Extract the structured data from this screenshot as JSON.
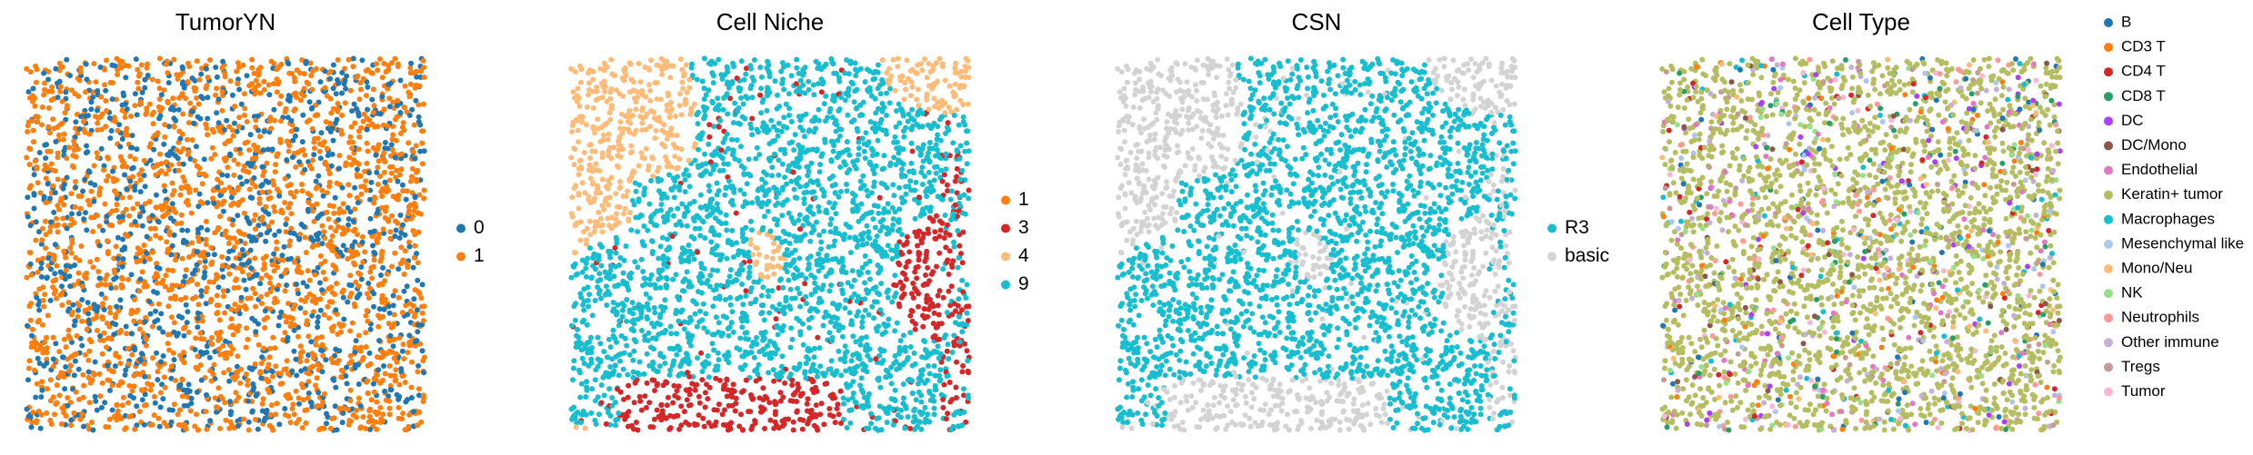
{
  "panels": [
    {
      "title": "TumorYN",
      "legend": [
        {
          "label": "0",
          "color": "#1f77b4"
        },
        {
          "label": "1",
          "color": "#ff7f0e"
        }
      ]
    },
    {
      "title": "Cell Niche",
      "legend": [
        {
          "label": "1",
          "color": "#ff7f0e"
        },
        {
          "label": "3",
          "color": "#d62728"
        },
        {
          "label": "4",
          "color": "#ffbb78"
        },
        {
          "label": "9",
          "color": "#17becf"
        }
      ]
    },
    {
      "title": "CSN",
      "legend": [
        {
          "label": "R3",
          "color": "#17becf"
        },
        {
          "label": "basic",
          "color": "#d3d3d3"
        }
      ]
    },
    {
      "title": "Cell Type",
      "legend": [
        {
          "label": "B",
          "color": "#1f77b4"
        },
        {
          "label": "CD3 T",
          "color": "#ff7f0e"
        },
        {
          "label": "CD4 T",
          "color": "#d62728"
        },
        {
          "label": "CD8 T",
          "color": "#279e68"
        },
        {
          "label": "DC",
          "color": "#aa40fc"
        },
        {
          "label": "DC/Mono",
          "color": "#8c564b"
        },
        {
          "label": "Endothelial",
          "color": "#e377c2"
        },
        {
          "label": "Keratin+ tumor",
          "color": "#b5bd61"
        },
        {
          "label": "Macrophages",
          "color": "#17becf"
        },
        {
          "label": "Mesenchymal like",
          "color": "#aec7e8"
        },
        {
          "label": "Mono/Neu",
          "color": "#ffbb78"
        },
        {
          "label": "NK",
          "color": "#98df8a"
        },
        {
          "label": "Neutrophils",
          "color": "#ff9896"
        },
        {
          "label": "Other immune",
          "color": "#c5b0d5"
        },
        {
          "label": "Tregs",
          "color": "#c49c94"
        },
        {
          "label": "Tumor",
          "color": "#f7b6d2"
        }
      ]
    }
  ]
}
